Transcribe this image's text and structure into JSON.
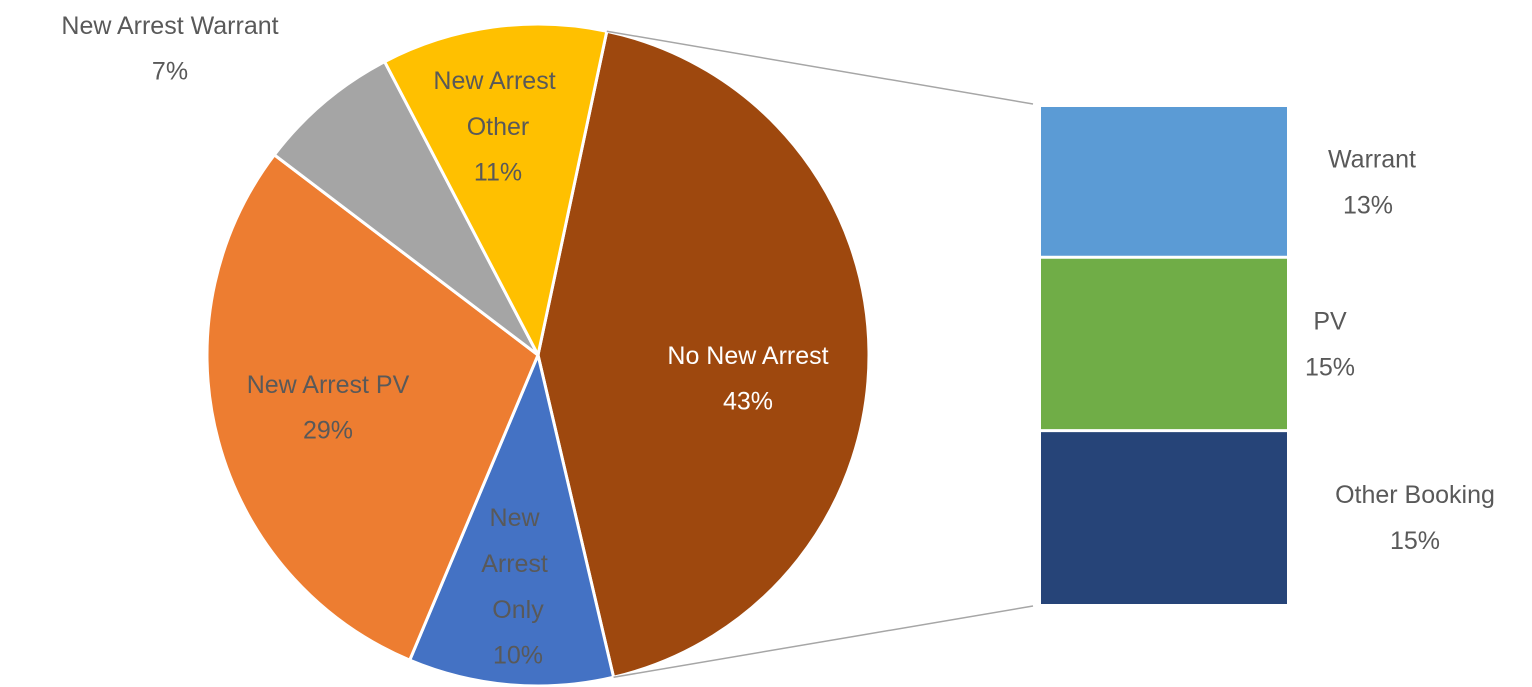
{
  "chart_data": {
    "type": "pie-of-bar",
    "categories": [
      "No New Arrest",
      "New Arrest Only",
      "New Arrest PV",
      "New Arrest Warrant",
      "New Arrest Other"
    ],
    "values": [
      43,
      10,
      29,
      7,
      11
    ],
    "value_labels": [
      "43%",
      "10%",
      "29%",
      "7%",
      "11%"
    ],
    "colors": [
      "#9e480e",
      "#4472c4",
      "#ed7d31",
      "#a5a5a5",
      "#ffc000"
    ],
    "breakdown": {
      "categories": [
        "Warrant",
        "PV",
        "Other Booking"
      ],
      "values": [
        13,
        15,
        15
      ],
      "value_labels": [
        "13%",
        "15%",
        "15%"
      ],
      "colors": [
        "#5b9bd5",
        "#70ad47",
        "#264478"
      ]
    }
  }
}
